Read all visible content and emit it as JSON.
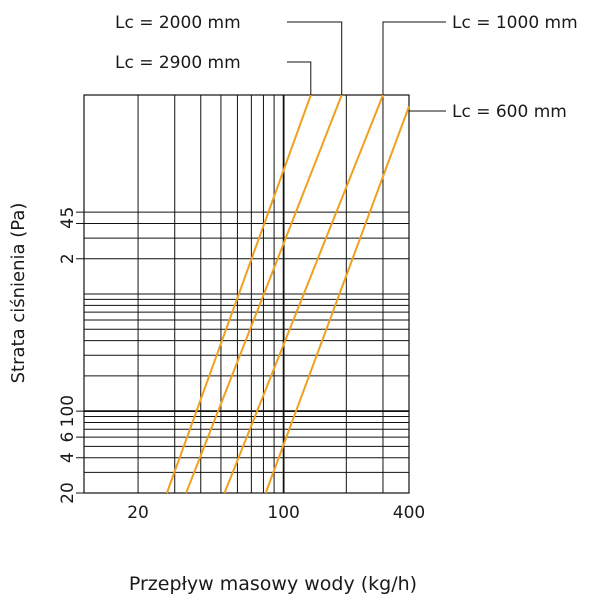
{
  "chart_data": {
    "type": "line",
    "xlabel": "Przepływ masowy wody (kg/h)",
    "ylabel": "Strata ciśnienia (Pa)",
    "x_scale": "log",
    "y_scale": "log",
    "xlim": [
      11,
      400
    ],
    "ylim": [
      20,
      50000
    ],
    "x_tick_labels": [
      {
        "value": 20,
        "label": "20"
      },
      {
        "value": 100,
        "label": "100"
      },
      {
        "value": 400,
        "label": "400"
      }
    ],
    "y_tick_labels": [
      {
        "value": 20,
        "label": "20"
      },
      {
        "value": 40,
        "label": "4"
      },
      {
        "value": 60,
        "label": "6"
      },
      {
        "value": 100,
        "label": "100"
      },
      {
        "value": 2000,
        "label": "2"
      },
      {
        "value": 4000,
        "label": "4"
      },
      {
        "value": 5000,
        "label": "5"
      }
    ],
    "x_gridlines": [
      20,
      30,
      40,
      50,
      60,
      70,
      80,
      90,
      100,
      200,
      300,
      400
    ],
    "y_gridlines": [
      20,
      30,
      40,
      50,
      60,
      70,
      80,
      90,
      100,
      200,
      300,
      400,
      500,
      600,
      700,
      800,
      900,
      1000,
      2000,
      3000,
      4000,
      5000
    ],
    "grid": true,
    "series_color": "#f0a020",
    "series": [
      {
        "name": "Lc = 2900 mm",
        "x": [
          27.5,
          135
        ],
        "y": [
          20,
          50000
        ]
      },
      {
        "name": "Lc = 2000 mm",
        "x": [
          34,
          190
        ],
        "y": [
          20,
          50000
        ]
      },
      {
        "name": "Lc = 1000 mm",
        "x": [
          52,
          300
        ],
        "y": [
          20,
          50000
        ]
      },
      {
        "name": "Lc = 600 mm",
        "x": [
          82,
          400
        ],
        "y": [
          20,
          40000
        ]
      }
    ]
  }
}
